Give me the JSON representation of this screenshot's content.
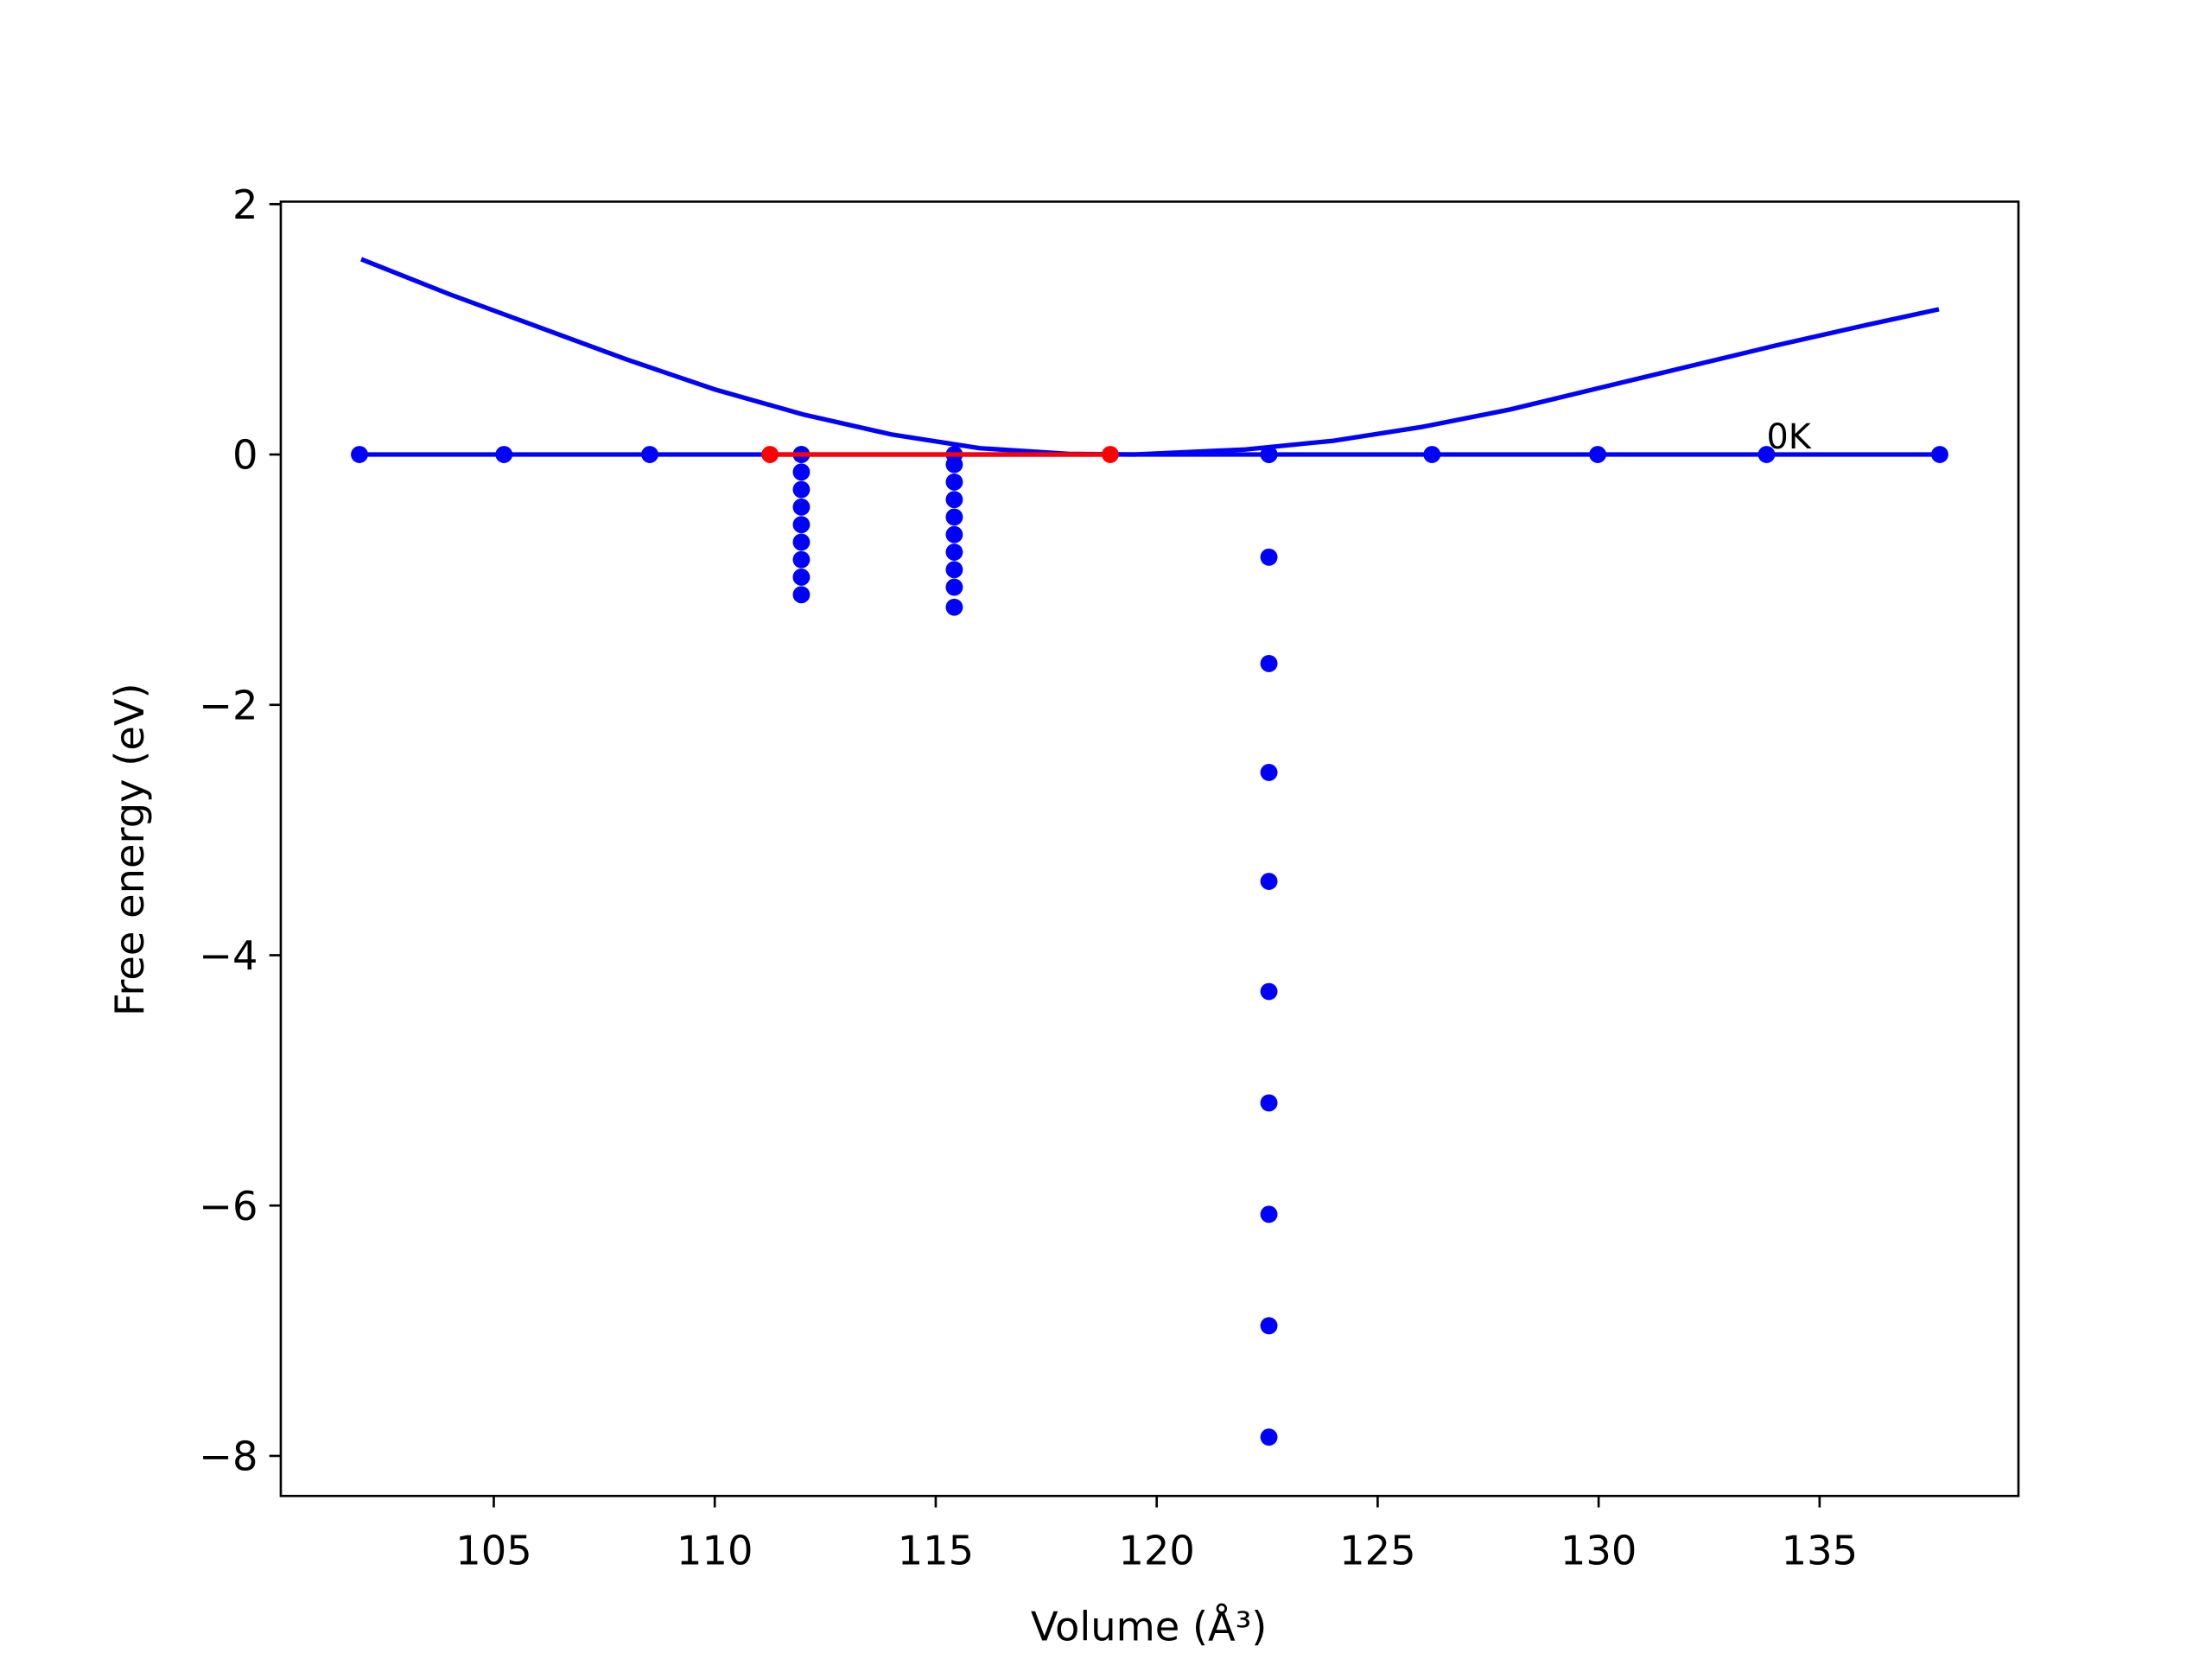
{
  "chart_data": {
    "type": "line",
    "xlabel": "Volume (Å³)",
    "ylabel": "Free energy (eV)",
    "xlim": [
      100.18,
      139.5
    ],
    "ylim": [
      -8.32,
      2.02
    ],
    "xticks": [
      105,
      110,
      115,
      120,
      125,
      130,
      135
    ],
    "yticks": [
      {
        "value": -8,
        "label": "−8"
      },
      {
        "value": -6,
        "label": "−6"
      },
      {
        "value": -4,
        "label": "−4"
      },
      {
        "value": -2,
        "label": "−2"
      },
      0,
      2
    ],
    "grid": false,
    "annotations": [
      {
        "text": "0K",
        "x": 133.8,
        "y": 0.05
      }
    ],
    "series": [
      {
        "type": "line",
        "color": "#0000ff",
        "marker": false,
        "x": [
          102,
          104,
          106,
          108,
          110,
          112,
          114,
          116,
          118,
          119.5,
          122,
          124,
          126,
          128,
          130,
          132,
          134,
          136,
          137.7
        ],
        "values": [
          1.56,
          1.28,
          1.02,
          0.76,
          0.52,
          0.32,
          0.16,
          0.05,
          0.005,
          0,
          0.04,
          0.11,
          0.22,
          0.36,
          0.53,
          0.7,
          0.87,
          1.03,
          1.16
        ]
      },
      {
        "type": "line",
        "color": "#0000ff",
        "marker": true,
        "x": [
          101.96,
          105.23,
          108.53,
          111.96,
          115.42,
          122.54,
          126.23,
          129.98,
          133.8,
          137.72
        ],
        "values": [
          0,
          0,
          0,
          0,
          0,
          0,
          0,
          0,
          0,
          0
        ]
      },
      {
        "type": "scatter",
        "color": "#0000ff",
        "marker": true,
        "x": [
          111.96,
          111.96,
          111.96,
          111.96,
          111.96,
          111.96,
          111.96,
          111.96,
          111.96
        ],
        "values": [
          0,
          -0.14,
          -0.28,
          -0.42,
          -0.56,
          -0.7,
          -0.84,
          -0.98,
          -1.12
        ]
      },
      {
        "type": "scatter",
        "color": "#0000ff",
        "marker": true,
        "x": [
          115.42,
          115.42,
          115.42,
          115.42,
          115.42,
          115.42,
          115.42,
          115.42,
          115.42
        ],
        "values": [
          -0.08,
          -0.22,
          -0.36,
          -0.5,
          -0.64,
          -0.78,
          -0.92,
          -1.06,
          -1.22
        ]
      },
      {
        "type": "scatter",
        "color": "#0000ff",
        "marker": true,
        "x": [
          122.54,
          122.54,
          122.54,
          122.54,
          122.54,
          122.54,
          122.54,
          122.54,
          122.54,
          122.54
        ],
        "values": [
          0,
          -0.82,
          -1.67,
          -2.54,
          -3.41,
          -4.29,
          -5.18,
          -6.07,
          -6.96,
          -7.85
        ]
      },
      {
        "type": "line",
        "color": "#ff0000",
        "marker": true,
        "x": [
          111.25,
          118.95
        ],
        "values": [
          0,
          0
        ]
      }
    ]
  }
}
